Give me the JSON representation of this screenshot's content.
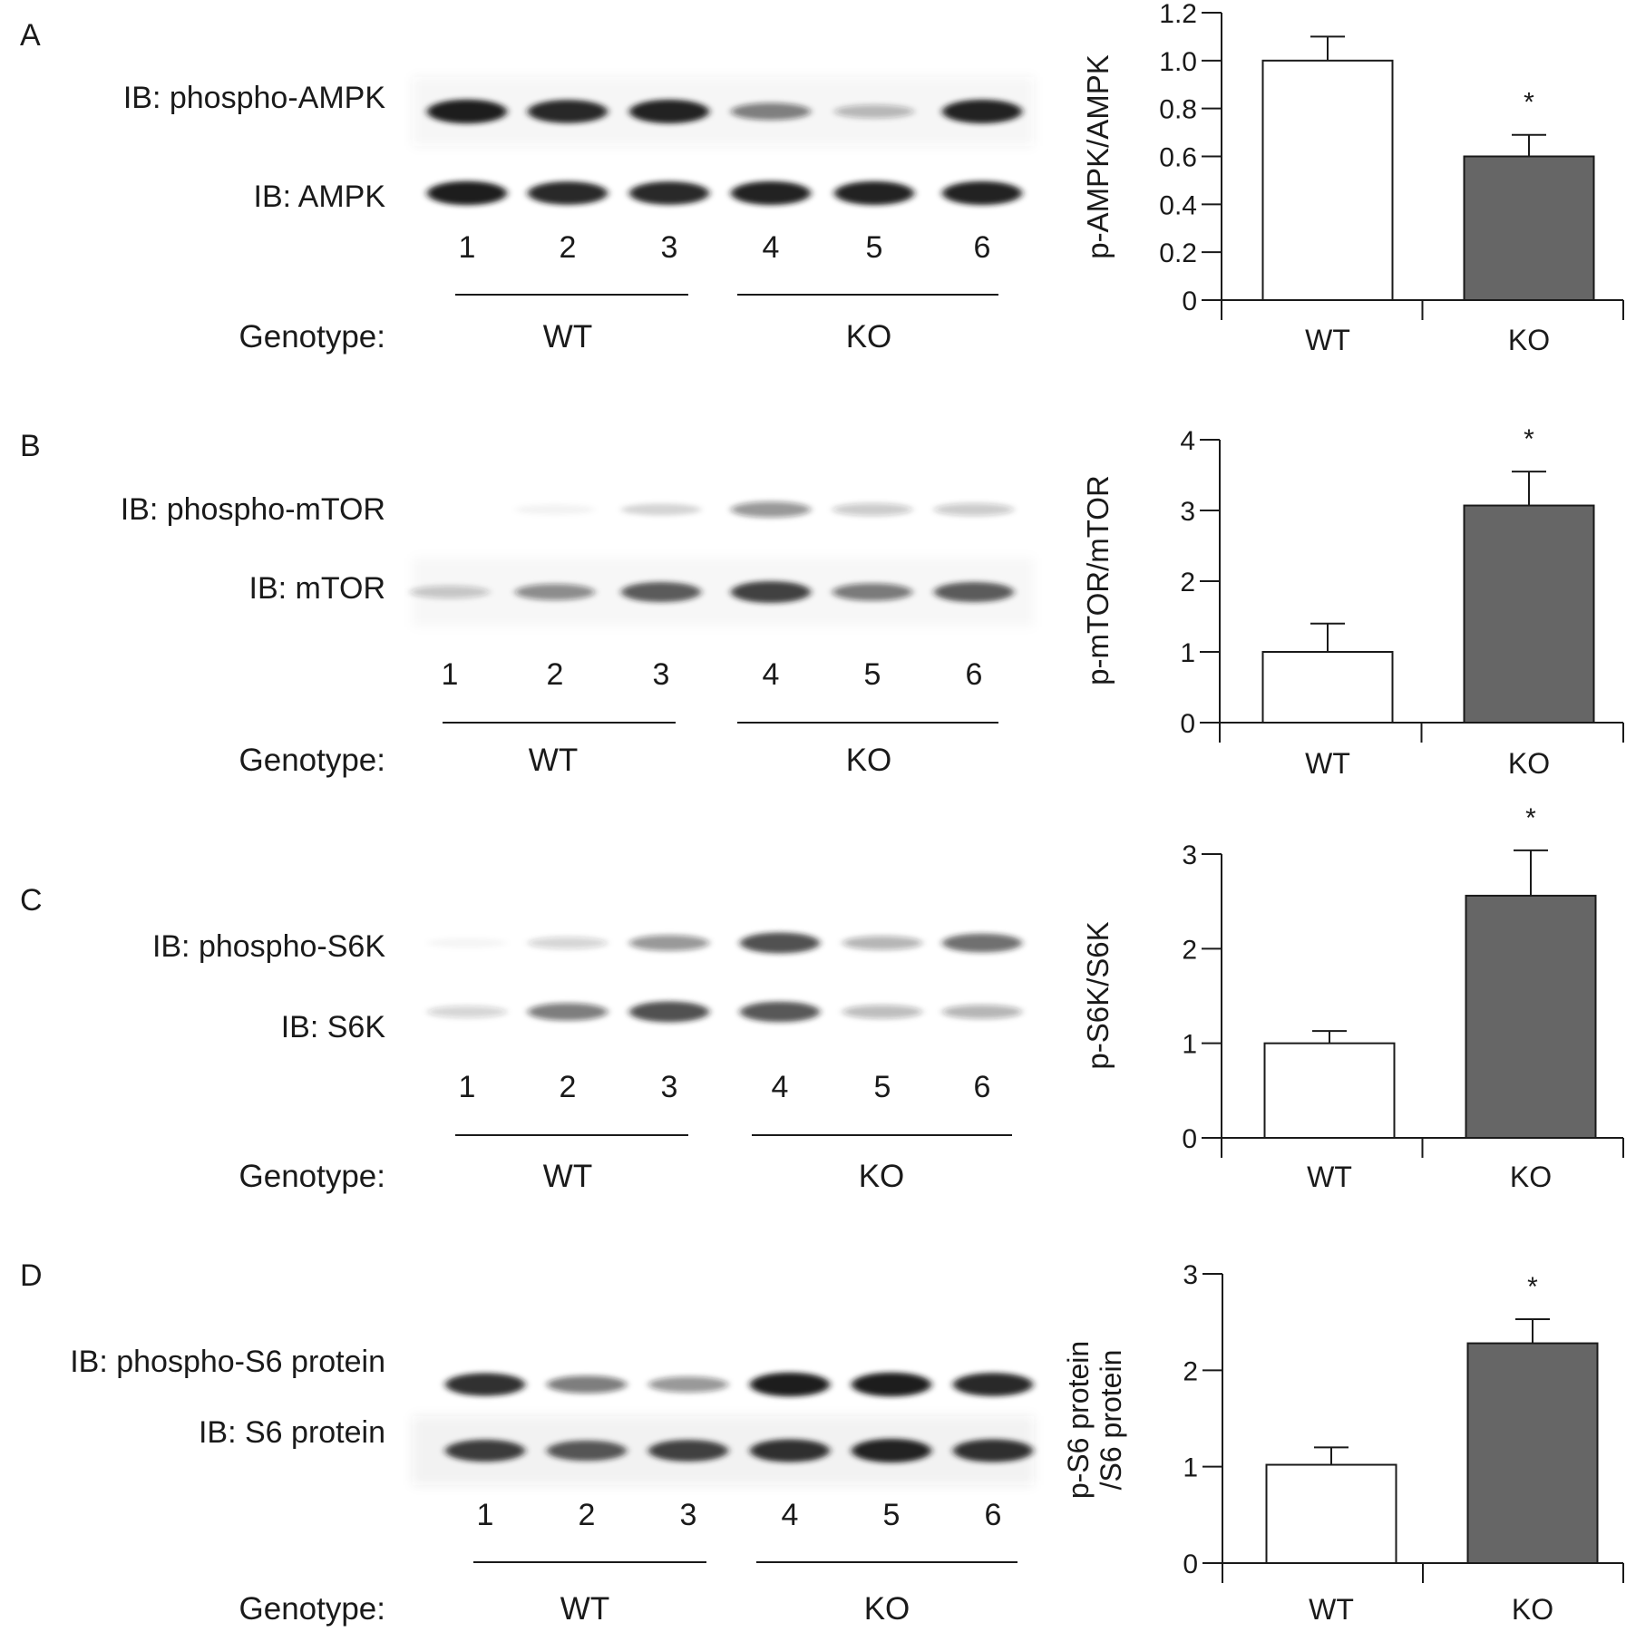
{
  "panels": [
    {
      "letter": "A",
      "blots": [
        {
          "label": "IB: phospho-AMPK",
          "intensity": [
            0.92,
            0.88,
            0.9,
            0.5,
            0.28,
            0.9
          ]
        },
        {
          "label": "IB: AMPK",
          "intensity": [
            0.92,
            0.88,
            0.88,
            0.9,
            0.9,
            0.9
          ]
        }
      ],
      "lanes": [
        "1",
        "2",
        "3",
        "4",
        "5",
        "6"
      ],
      "genotype_label": "Genotype:",
      "groups": [
        "WT",
        "KO"
      ],
      "chart_data": {
        "type": "bar",
        "categories": [
          "WT",
          "KO"
        ],
        "values": [
          1.0,
          0.6
        ],
        "error": [
          0.1,
          0.09
        ],
        "significance": [
          "",
          "*"
        ],
        "ylabel": "p-AMPK/AMPK",
        "ylim": [
          0,
          1.2
        ],
        "yticks": [
          "0",
          "0.2",
          "0.4",
          "0.6",
          "0.8",
          "1.0",
          "1.2"
        ],
        "bar_colors": [
          "#ffffff",
          "#666666"
        ],
        "grid": false
      }
    },
    {
      "letter": "B",
      "blots": [
        {
          "label": "IB: phospho-mTOR",
          "intensity": [
            0.0,
            0.05,
            0.16,
            0.42,
            0.22,
            0.22
          ]
        },
        {
          "label": "IB: mTOR",
          "intensity": [
            0.22,
            0.45,
            0.68,
            0.78,
            0.52,
            0.68
          ]
        }
      ],
      "lanes": [
        "1",
        "2",
        "3",
        "4",
        "5",
        "6"
      ],
      "genotype_label": "Genotype:",
      "groups": [
        "WT",
        "KO"
      ],
      "chart_data": {
        "type": "bar",
        "categories": [
          "WT",
          "KO"
        ],
        "values": [
          1.0,
          3.07
        ],
        "error": [
          0.4,
          0.48
        ],
        "significance": [
          "",
          "*"
        ],
        "ylabel": "p-mTOR/mTOR",
        "ylim": [
          0,
          4
        ],
        "yticks": [
          "0",
          "1",
          "2",
          "3",
          "4"
        ],
        "bar_colors": [
          "#ffffff",
          "#666666"
        ],
        "grid": false
      }
    },
    {
      "letter": "C",
      "blots": [
        {
          "label": "IB: phospho-S6K",
          "intensity": [
            0.04,
            0.18,
            0.42,
            0.72,
            0.3,
            0.6
          ]
        },
        {
          "label": "IB: S6K",
          "intensity": [
            0.18,
            0.52,
            0.72,
            0.7,
            0.28,
            0.3
          ]
        }
      ],
      "lanes": [
        "1",
        "2",
        "3",
        "4",
        "5",
        "6"
      ],
      "genotype_label": "Genotype:",
      "groups": [
        "WT",
        "KO"
      ],
      "chart_data": {
        "type": "bar",
        "categories": [
          "WT",
          "KO"
        ],
        "values": [
          1.0,
          2.56
        ],
        "error": [
          0.13,
          0.48
        ],
        "significance": [
          "",
          "*"
        ],
        "ylabel": "p-S6K/S6K",
        "ylim": [
          0,
          3
        ],
        "yticks": [
          "0",
          "1",
          "2",
          "3"
        ],
        "bar_colors": [
          "#ffffff",
          "#666666"
        ],
        "grid": false
      }
    },
    {
      "letter": "D",
      "blots": [
        {
          "label": "IB: phospho-S6 protein",
          "intensity": [
            0.85,
            0.52,
            0.42,
            0.92,
            0.92,
            0.88
          ]
        },
        {
          "label": "IB: S6 protein",
          "intensity": [
            0.8,
            0.7,
            0.78,
            0.85,
            0.9,
            0.85
          ]
        }
      ],
      "lanes": [
        "1",
        "2",
        "3",
        "4",
        "5",
        "6"
      ],
      "genotype_label": "Genotype:",
      "groups": [
        "WT",
        "KO"
      ],
      "chart_data": {
        "type": "bar",
        "categories": [
          "WT",
          "KO"
        ],
        "values": [
          1.02,
          2.28
        ],
        "error": [
          0.18,
          0.25
        ],
        "significance": [
          "",
          "*"
        ],
        "ylabel": "p-S6 protein /S6 protein",
        "ylabel_lines": [
          "p-S6 protein",
          "/S6 protein"
        ],
        "ylim": [
          0,
          3
        ],
        "yticks": [
          "0",
          "1",
          "2",
          "3"
        ],
        "bar_colors": [
          "#ffffff",
          "#666666"
        ],
        "grid": false
      }
    }
  ]
}
